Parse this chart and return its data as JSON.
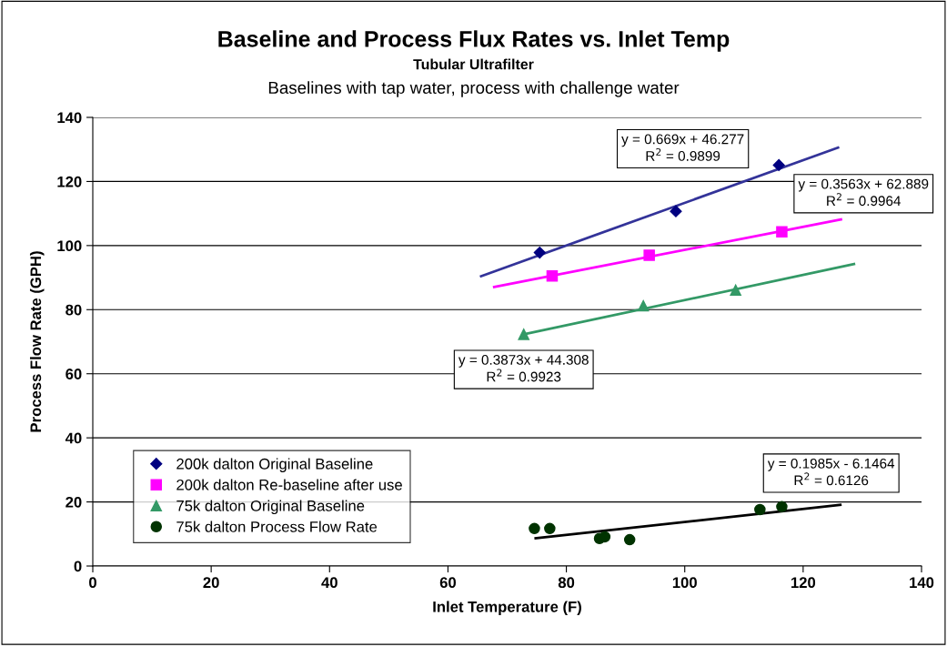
{
  "chart_data": {
    "type": "scatter",
    "title": "Baseline and Process Flux Rates vs. Inlet Temp",
    "subtitle": [
      "Tubular Ultrafilter",
      "Baselines with tap water, process with challenge water"
    ],
    "xlabel": "Inlet Temperature (F)",
    "ylabel": "Process Flow Rate (GPH)",
    "xlim": [
      0,
      140
    ],
    "xticks": [
      0,
      20,
      40,
      60,
      80,
      100,
      120,
      140
    ],
    "ylim": [
      0,
      140
    ],
    "yticks": [
      0,
      20,
      40,
      60,
      80,
      100,
      120,
      140
    ],
    "grid": "y",
    "legend": "bottom left",
    "series": [
      {
        "name": "200k dalton Original Baseline",
        "color": "#000080",
        "marker": "diamond",
        "x": [
          75.5,
          98.5,
          115.9
        ],
        "values": [
          97.8,
          110.7,
          125.1
        ]
      },
      {
        "name": "200k dalton Re-baseline after use",
        "color": "#ff00ff",
        "marker": "square",
        "x": [
          77.6,
          94.0,
          116.4
        ],
        "values": [
          90.5,
          97.0,
          104.3
        ]
      },
      {
        "name": "75k dalton Original Baseline",
        "color": "#339966",
        "marker": "triangle",
        "x": [
          72.8,
          93.0,
          108.6
        ],
        "values": [
          72.3,
          81.2,
          86.1
        ]
      },
      {
        "name": "75k dalton Process Flow Rate",
        "color": "#003300",
        "marker": "circle",
        "x": [
          74.6,
          77.2,
          85.6,
          86.5,
          90.7,
          112.7,
          116.4
        ],
        "values": [
          11.7,
          11.7,
          8.6,
          9.1,
          8.2,
          17.6,
          18.5
        ]
      },
      {
        "type": "line",
        "color": "#333399",
        "marker": "none",
        "x": [
          65.4,
          126.1
        ],
        "values": [
          90.3,
          130.7
        ]
      },
      {
        "type": "line",
        "color": "#ff00ff",
        "marker": "none",
        "x": [
          67.6,
          126.6
        ],
        "values": [
          87.0,
          108.2
        ]
      },
      {
        "type": "line",
        "color": "#339966",
        "marker": "none",
        "x": [
          72.8,
          128.8
        ],
        "values": [
          72.3,
          94.3
        ]
      },
      {
        "type": "line",
        "color": "#000000",
        "marker": "none",
        "x": [
          74.6,
          126.5
        ],
        "values": [
          8.6,
          19.1
        ]
      }
    ],
    "annotations": [
      "y = 0.669x + 46.277\nR$^{2}$ = 0.9899",
      "y = 0.3563x + 62.889\nR$^{2}$ = 0.9964",
      "y = 0.3873x + 44.308\nR$^{2}$ = 0.9923",
      "y = 0.1985x - 6.1464\nR$^{2}$ = 0.6126"
    ]
  }
}
